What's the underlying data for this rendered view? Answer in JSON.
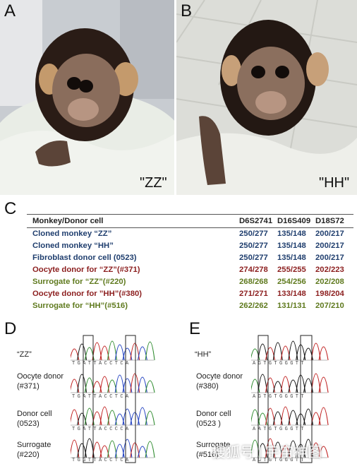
{
  "panels": {
    "a_letter": "A",
    "b_letter": "B",
    "c_letter": "C",
    "d_letter": "D",
    "e_letter": "E"
  },
  "photo_captions": {
    "a": "\"ZZ\"",
    "b": "\"HH\""
  },
  "table": {
    "headers": [
      "Monkey/Donor cell",
      "D6S2741",
      "D16S409",
      "D18S72"
    ],
    "rows": [
      {
        "name": "Cloned monkey “ZZ”",
        "v1": "250/277",
        "v2": "135/148",
        "v3": "200/217",
        "color": "#1f3e6e"
      },
      {
        "name": "Cloned monkey “HH”",
        "v1": "250/277",
        "v2": "135/148",
        "v3": "200/217",
        "color": "#1f3e6e"
      },
      {
        "name": "Fibroblast  donor cell (0523)",
        "v1": "250/277",
        "v2": "135/148",
        "v3": "200/217",
        "color": "#1f3e6e"
      },
      {
        "name": "Oocyte donor for “ZZ”(#371)",
        "v1": "274/278",
        "v2": "255/255",
        "v3": "202/223",
        "color": "#8c1f1f"
      },
      {
        "name": "Surrogate for “ZZ”(#220)",
        "v1": "268/268",
        "v2": "254/256",
        "v3": "202/208",
        "color": "#5f7a1e"
      },
      {
        "name": "Oocyte donor for ”HH”(#380)",
        "v1": "271/271",
        "v2": "133/148",
        "v3": "198/204",
        "color": "#8c1f1f"
      },
      {
        "name": "Surrogate for “HH”(#516)",
        "v1": "262/262",
        "v2": "131/131",
        "v3": "207/210",
        "color": "#5f7a1e"
      }
    ]
  },
  "panel_d": {
    "labels": {
      "zz": "“ZZ”",
      "oocyte": "Oocyte donor",
      "oocyte_id": "(#371)",
      "donor": "Donor cell",
      "donor_id": "(0523)",
      "surrogate": "Surrogate",
      "surrogate_id": "(#220)"
    },
    "seqs": {
      "s1": "TGATTACCTCA",
      "s2": "TGATTACCTCA",
      "s3": "TGATTACCCCA",
      "s4": "TGGTTACCTCA"
    }
  },
  "panel_e": {
    "labels": {
      "hh": "“HH”",
      "oocyte": "Oocyte donor",
      "oocyte_id": "(#380)",
      "donor": "Donor cell",
      "donor_id": "(0523 )",
      "surrogate": "Surrogate",
      "surrogate_id": "(#516)"
    },
    "seqs": {
      "s1": "AGTGTGGGTT",
      "s2": "AGTGTGGGTT",
      "s3": "AATGTGGGTT",
      "s4": "AGTGTGGGTT"
    }
  },
  "watermark": "搜狐号 | 宇宙神图",
  "trace_colors": {
    "a": "#2e8b2e",
    "c": "#2040c0",
    "g": "#111111",
    "t": "#c02020"
  }
}
